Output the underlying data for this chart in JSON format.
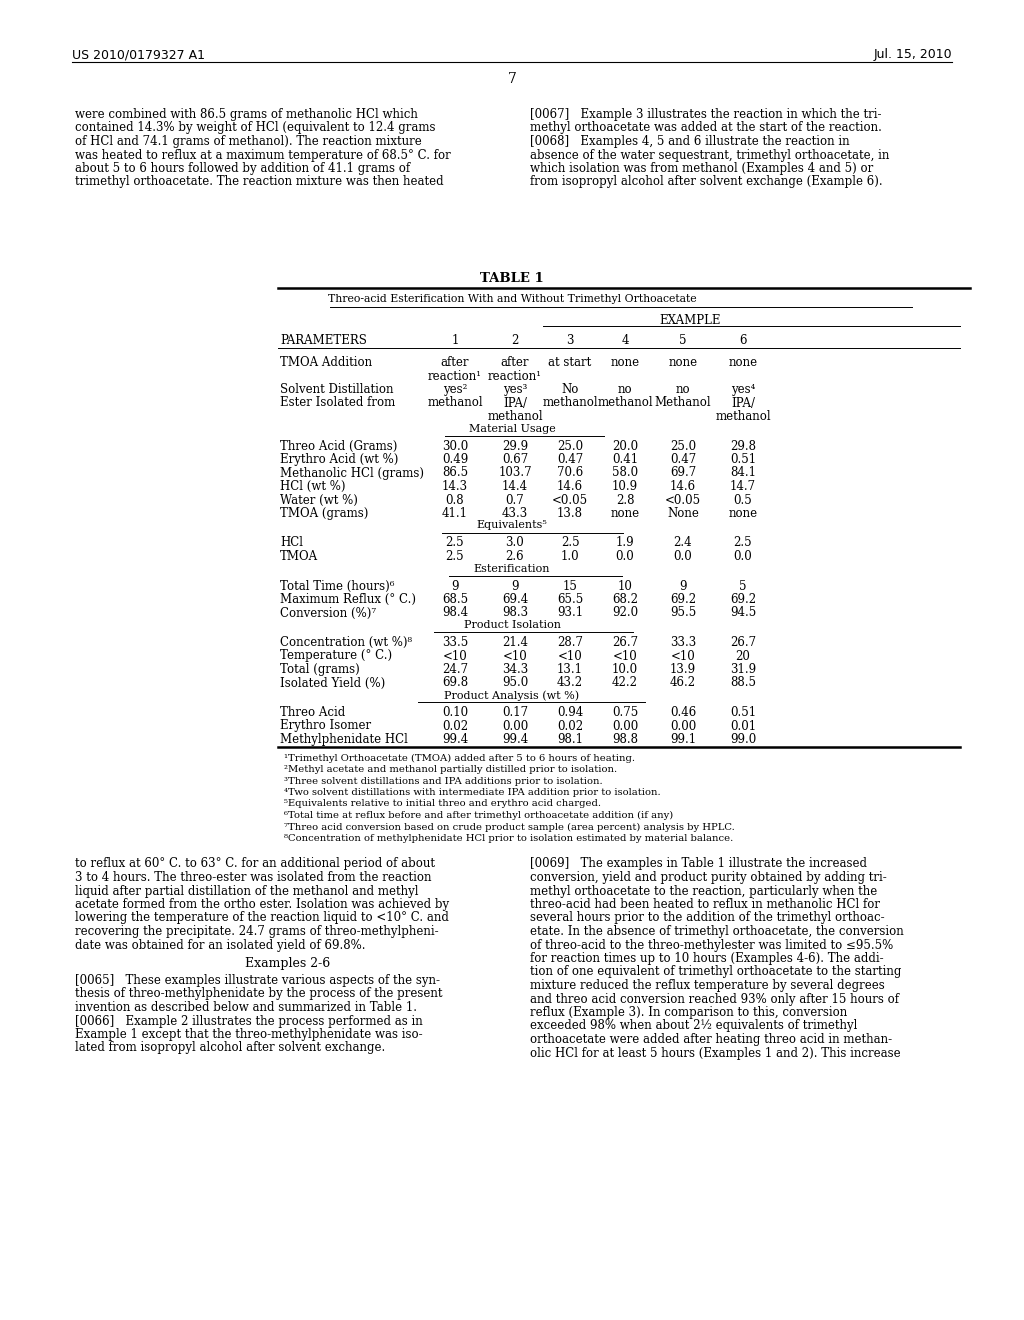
{
  "page_number": "7",
  "patent_left": "US 2010/0179327 A1",
  "patent_right": "Jul. 15, 2010",
  "left_col_top": "were combined with 86.5 grams of methanolic HCl which\ncontained 14.3% by weight of HCl (equivalent to 12.4 grams\nof HCl and 74.1 grams of methanol). The reaction mixture\nwas heated to reflux at a maximum temperature of 68.5° C. for\nabout 5 to 6 hours followed by addition of 41.1 grams of\ntrimethyl orthoacetate. The reaction mixture was then heated",
  "right_col_top": "[0067]   Example 3 illustrates the reaction in which the tri-\nmethyl orthoacetate was added at the start of the reaction.\n[0068]   Examples 4, 5 and 6 illustrate the reaction in\nabsence of the water sequestrant, trimethyl orthoacetate, in\nwhich isolation was from methanol (Examples 4 and 5) or\nfrom isopropyl alcohol after solvent exchange (Example 6).",
  "table_title": "TABLE 1",
  "table_subtitle": "Threo-acid Esterification With and Without Trimethyl Orthoacetate",
  "col_headers": [
    "PARAMETERS",
    "1",
    "2",
    "3",
    "4",
    "5",
    "6"
  ],
  "example_header": "EXAMPLE",
  "section_material_usage": "Material Usage",
  "section_equivalents": "Equivalents⁵",
  "section_esterification": "Esterification",
  "section_product_isolation": "Product Isolation",
  "section_product_analysis": "Product Analysis (wt %)",
  "rows": [
    [
      "TMOA Addition",
      "after\nreaction¹",
      "after\nreaction¹",
      "at start",
      "none",
      "none",
      "none"
    ],
    [
      "Solvent Distillation",
      "yes²",
      "yes³",
      "No",
      "no",
      "no",
      "yes⁴"
    ],
    [
      "Ester Isolated from",
      "methanol",
      "IPA/\nmethanol",
      "methanol",
      "methanol",
      "Methanol",
      "IPA/\nmethanol"
    ],
    [
      "Threo Acid (Grams)",
      "30.0",
      "29.9",
      "25.0",
      "20.0",
      "25.0",
      "29.8"
    ],
    [
      "Erythro Acid (wt %)",
      "0.49",
      "0.67",
      "0.47",
      "0.41",
      "0.47",
      "0.51"
    ],
    [
      "Methanolic HCl (grams)",
      "86.5",
      "103.7",
      "70.6",
      "58.0",
      "69.7",
      "84.1"
    ],
    [
      "HCl (wt %)",
      "14.3",
      "14.4",
      "14.6",
      "10.9",
      "14.6",
      "14.7"
    ],
    [
      "Water (wt %)",
      "0.8",
      "0.7",
      "<0.05",
      "2.8",
      "<0.05",
      "0.5"
    ],
    [
      "TMOA (grams)",
      "41.1",
      "43.3",
      "13.8",
      "none",
      "None",
      "none"
    ],
    [
      "HCl",
      "2.5",
      "3.0",
      "2.5",
      "1.9",
      "2.4",
      "2.5"
    ],
    [
      "TMOA",
      "2.5",
      "2.6",
      "1.0",
      "0.0",
      "0.0",
      "0.0"
    ],
    [
      "Total Time (hours)⁶",
      "9",
      "9",
      "15",
      "10",
      "9",
      "5"
    ],
    [
      "Maximum Reflux (° C.)",
      "68.5",
      "69.4",
      "65.5",
      "68.2",
      "69.2",
      "69.2"
    ],
    [
      "Conversion (%)⁷",
      "98.4",
      "98.3",
      "93.1",
      "92.0",
      "95.5",
      "94.5"
    ],
    [
      "Concentration (wt %)⁸",
      "33.5",
      "21.4",
      "28.7",
      "26.7",
      "33.3",
      "26.7"
    ],
    [
      "Temperature (° C.)",
      "<10",
      "<10",
      "<10",
      "<10",
      "<10",
      "20"
    ],
    [
      "Total (grams)",
      "24.7",
      "34.3",
      "13.1",
      "10.0",
      "13.9",
      "31.9"
    ],
    [
      "Isolated Yield (%)",
      "69.8",
      "95.0",
      "43.2",
      "42.2",
      "46.2",
      "88.5"
    ],
    [
      "Threo Acid",
      "0.10",
      "0.17",
      "0.94",
      "0.75",
      "0.46",
      "0.51"
    ],
    [
      "Erythro Isomer",
      "0.02",
      "0.00",
      "0.02",
      "0.00",
      "0.00",
      "0.01"
    ],
    [
      "Methylphenidate HCl",
      "99.4",
      "99.4",
      "98.1",
      "98.8",
      "99.1",
      "99.0"
    ]
  ],
  "footnotes": [
    "¹Trimethyl Orthoacetate (TMOA) added after 5 to 6 hours of heating.",
    "²Methyl acetate and methanol partially distilled prior to isolation.",
    "³Three solvent distillations and IPA additions prior to isolation.",
    "⁴Two solvent distillations with intermediate IPA addition prior to isolation.",
    "⁵Equivalents relative to initial threo and erythro acid charged.",
    "⁶Total time at reflux before and after trimethyl orthoacetate addition (if any)",
    "⁷Threo acid conversion based on crude product sample (area percent) analysis by HPLC.",
    "⁸Concentration of methylphenidate HCl prior to isolation estimated by material balance."
  ],
  "left_col_bottom1": "to reflux at 60° C. to 63° C. for an additional period of about\n3 to 4 hours. The threo-ester was isolated from the reaction\nliquid after partial distillation of the methanol and methyl\nacetate formed from the ortho ester. Isolation was achieved by\nlowering the temperature of the reaction liquid to <10° C. and\nrecovering the precipitate. 24.7 grams of threo-methylpheni-\ndate was obtained for an isolated yield of 69.8%.",
  "left_col_bottom2": "Examples 2-6",
  "left_col_bottom3": "[0065]   These examples illustrate various aspects of the syn-\nthesis of threo-methylphenidate by the process of the present\ninvention as described below and summarized in Table 1.\n[0066]   Example 2 illustrates the process performed as in\nExample 1 except that the threo-methylphenidate was iso-\nlated from isopropyl alcohol after solvent exchange.",
  "right_col_bottom": "[0069]   The examples in Table 1 illustrate the increased\nconversion, yield and product purity obtained by adding tri-\nmethyl orthoacetate to the reaction, particularly when the\nthreo-acid had been heated to reflux in methanolic HCl for\nseveral hours prior to the addition of the trimethyl orthoac-\netate. In the absence of trimethyl orthoacetate, the conversion\nof threo-acid to the threo-methylester was limited to ≤95.5%\nfor reaction times up to 10 hours (Examples 4-6). The addi-\ntion of one equivalent of trimethyl orthoacetate to the starting\nmixture reduced the reflux temperature by several degrees\nand threo acid conversion reached 93% only after 15 hours of\nreflux (Example 3). In comparison to this, conversion\nexceeded 98% when about 2½ equivalents of trimethyl\northoacetate were added after heating threo acid in methan-\nolic HCl for at least 5 hours (Examples 1 and 2). This increase"
}
